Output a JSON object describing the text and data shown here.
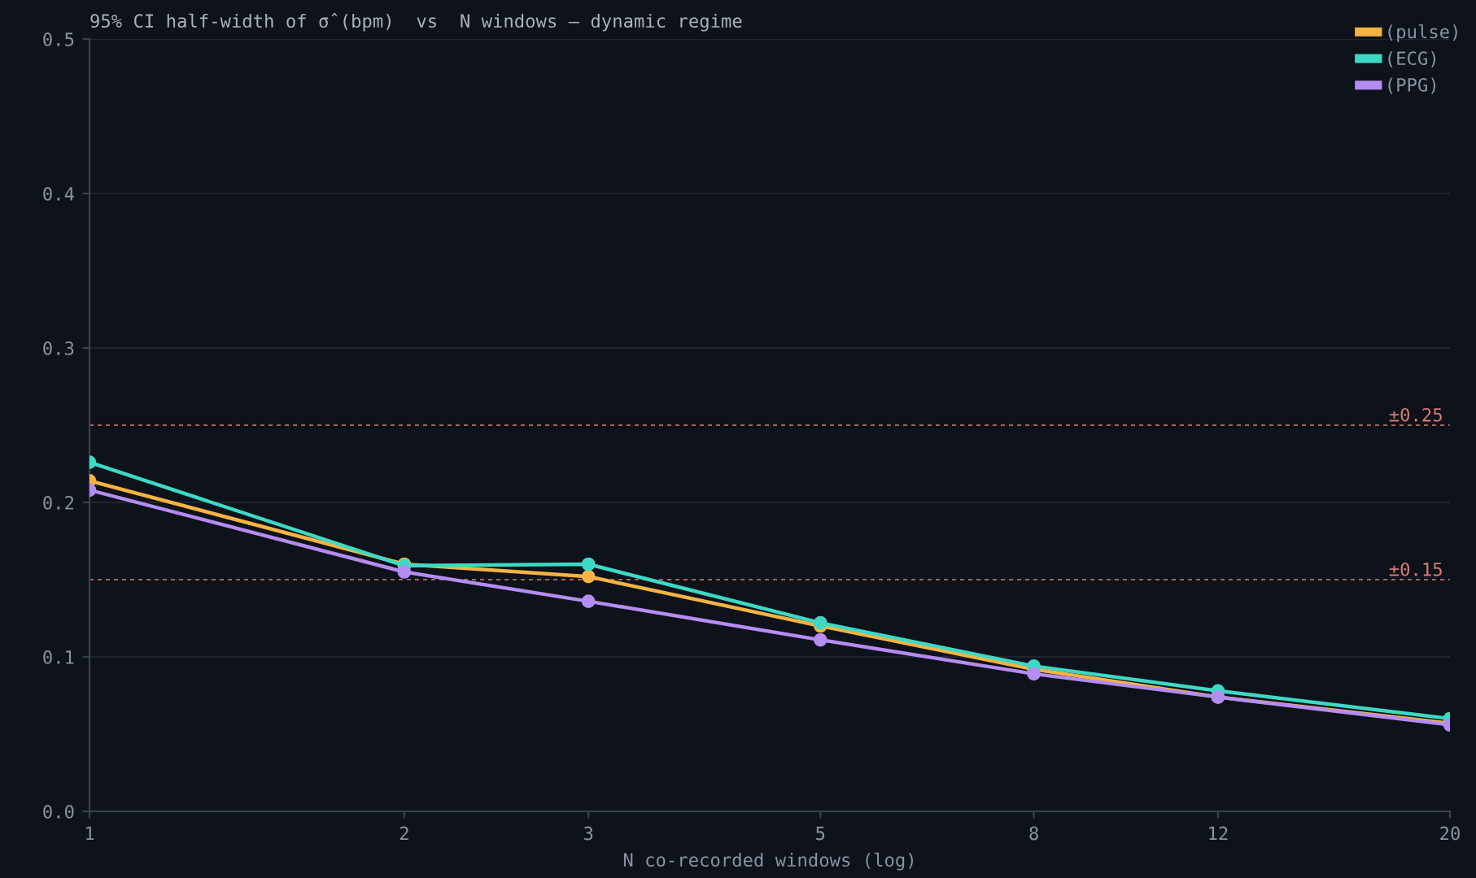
{
  "chart_data": {
    "type": "line",
    "title": "95% CI half-width of σ̂(bpm)  vs  N windows — dynamic regime",
    "xlabel": "N co-recorded windows (log)",
    "x": [
      1,
      2,
      3,
      5,
      8,
      12,
      20
    ],
    "series": [
      {
        "name": "(pulse)",
        "color": "#f5b342",
        "values": [
          0.214,
          0.16,
          0.152,
          0.12,
          0.092,
          0.074,
          0.057
        ]
      },
      {
        "name": "(ECG)",
        "color": "#3dd9c5",
        "values": [
          0.226,
          0.159,
          0.16,
          0.122,
          0.094,
          0.078,
          0.06
        ]
      },
      {
        "name": "(PPG)",
        "color": "#b48cf2",
        "values": [
          0.208,
          0.155,
          0.136,
          0.111,
          0.089,
          0.074,
          0.056
        ]
      }
    ],
    "log": "x",
    "xlim": [
      1,
      20
    ],
    "xticks": [
      1,
      2,
      3,
      5,
      8,
      12,
      20
    ],
    "ylim": [
      0,
      0.5
    ],
    "yticks": [
      {
        "value": 0,
        "label": "0.0"
      },
      0.1,
      0.2,
      0.3,
      0.4,
      0.5
    ],
    "ref_lines": [
      {
        "axis": "y",
        "value": 0.25,
        "label": "±0.25",
        "color": "#d97c72",
        "line_style": "dashed"
      },
      {
        "axis": "y",
        "value": 0.15,
        "label": "±0.15",
        "color": "#d97c72",
        "line_style": "dashed"
      }
    ],
    "grid": "y",
    "legend": "top right",
    "marker": "circle",
    "line_style": "solid"
  }
}
